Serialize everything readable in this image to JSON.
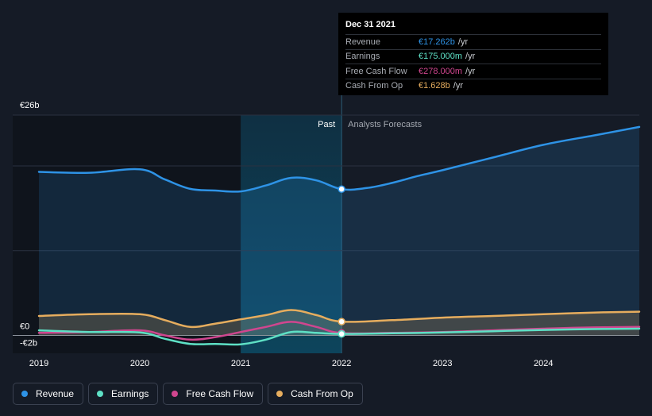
{
  "chart_data": {
    "type": "line",
    "currency": "EUR",
    "x_ticks": [
      "2019",
      "2020",
      "2021",
      "2022",
      "2023",
      "2024"
    ],
    "y_tick_labels": [
      "€26b",
      "€0",
      "-€2b"
    ],
    "ylim": [
      -2,
      26
    ],
    "xlim": [
      2019,
      2024.95
    ],
    "past_label": "Past",
    "forecast_label": "Analysts Forecasts",
    "divider_x": 2022.0,
    "highlight_range": [
      2021.0,
      2022.0
    ],
    "series": [
      {
        "name": "Revenue",
        "color": "#2e93e6",
        "fill": true,
        "points": [
          [
            2019.0,
            19.3
          ],
          [
            2019.5,
            19.2
          ],
          [
            2020.0,
            19.6
          ],
          [
            2020.25,
            18.4
          ],
          [
            2020.5,
            17.3
          ],
          [
            2020.75,
            17.1
          ],
          [
            2021.0,
            17.0
          ],
          [
            2021.25,
            17.7
          ],
          [
            2021.5,
            18.6
          ],
          [
            2021.75,
            18.3
          ],
          [
            2022.0,
            17.262
          ],
          [
            2022.25,
            17.4
          ],
          [
            2022.5,
            18.0
          ],
          [
            2022.75,
            18.8
          ],
          [
            2023.0,
            19.5
          ],
          [
            2023.5,
            21.0
          ],
          [
            2024.0,
            22.5
          ],
          [
            2024.5,
            23.6
          ],
          [
            2024.95,
            24.6
          ]
        ]
      },
      {
        "name": "Earnings",
        "color": "#5ee0c5",
        "fill": false,
        "points": [
          [
            2019.0,
            0.6
          ],
          [
            2019.5,
            0.4
          ],
          [
            2020.0,
            0.35
          ],
          [
            2020.25,
            -0.4
          ],
          [
            2020.5,
            -1.0
          ],
          [
            2020.75,
            -1.0
          ],
          [
            2021.0,
            -1.05
          ],
          [
            2021.25,
            -0.5
          ],
          [
            2021.5,
            0.4
          ],
          [
            2021.75,
            0.3
          ],
          [
            2022.0,
            0.175
          ],
          [
            2022.5,
            0.25
          ],
          [
            2023.0,
            0.35
          ],
          [
            2023.5,
            0.5
          ],
          [
            2024.0,
            0.65
          ],
          [
            2024.5,
            0.75
          ],
          [
            2024.95,
            0.8
          ]
        ]
      },
      {
        "name": "Free Cash Flow",
        "color": "#d0468f",
        "fill": false,
        "points": [
          [
            2019.0,
            0.3
          ],
          [
            2019.5,
            0.4
          ],
          [
            2020.0,
            0.6
          ],
          [
            2020.25,
            0.0
          ],
          [
            2020.5,
            -0.5
          ],
          [
            2020.75,
            -0.2
          ],
          [
            2021.0,
            0.4
          ],
          [
            2021.25,
            1.0
          ],
          [
            2021.5,
            1.6
          ],
          [
            2021.75,
            1.0
          ],
          [
            2022.0,
            0.278
          ],
          [
            2022.5,
            0.3
          ],
          [
            2023.0,
            0.4
          ],
          [
            2023.5,
            0.6
          ],
          [
            2024.0,
            0.8
          ],
          [
            2024.5,
            0.95
          ],
          [
            2024.95,
            1.0
          ]
        ]
      },
      {
        "name": "Cash From Op",
        "color": "#e6ad5e",
        "fill": true,
        "points": [
          [
            2019.0,
            2.3
          ],
          [
            2019.5,
            2.5
          ],
          [
            2020.0,
            2.5
          ],
          [
            2020.25,
            1.8
          ],
          [
            2020.5,
            1.0
          ],
          [
            2020.75,
            1.4
          ],
          [
            2021.0,
            1.9
          ],
          [
            2021.25,
            2.4
          ],
          [
            2021.5,
            3.0
          ],
          [
            2021.75,
            2.4
          ],
          [
            2022.0,
            1.628
          ],
          [
            2022.5,
            1.8
          ],
          [
            2023.0,
            2.1
          ],
          [
            2023.5,
            2.3
          ],
          [
            2024.0,
            2.5
          ],
          [
            2024.5,
            2.7
          ],
          [
            2024.95,
            2.8
          ]
        ]
      }
    ],
    "tooltip": {
      "date": "Dec 31 2021",
      "rows": [
        {
          "label": "Revenue",
          "value": "€17.262b",
          "unit": "/yr",
          "color": "#2e93e6"
        },
        {
          "label": "Earnings",
          "value": "€175.000m",
          "unit": "/yr",
          "color": "#5ee0c5"
        },
        {
          "label": "Free Cash Flow",
          "value": "€278.000m",
          "unit": "/yr",
          "color": "#d0468f"
        },
        {
          "label": "Cash From Op",
          "value": "€1.628b",
          "unit": "/yr",
          "color": "#e6ad5e"
        }
      ]
    }
  },
  "legend": [
    {
      "label": "Revenue",
      "color": "#2e93e6"
    },
    {
      "label": "Earnings",
      "color": "#5ee0c5"
    },
    {
      "label": "Free Cash Flow",
      "color": "#d0468f"
    },
    {
      "label": "Cash From Op",
      "color": "#e6ad5e"
    }
  ]
}
